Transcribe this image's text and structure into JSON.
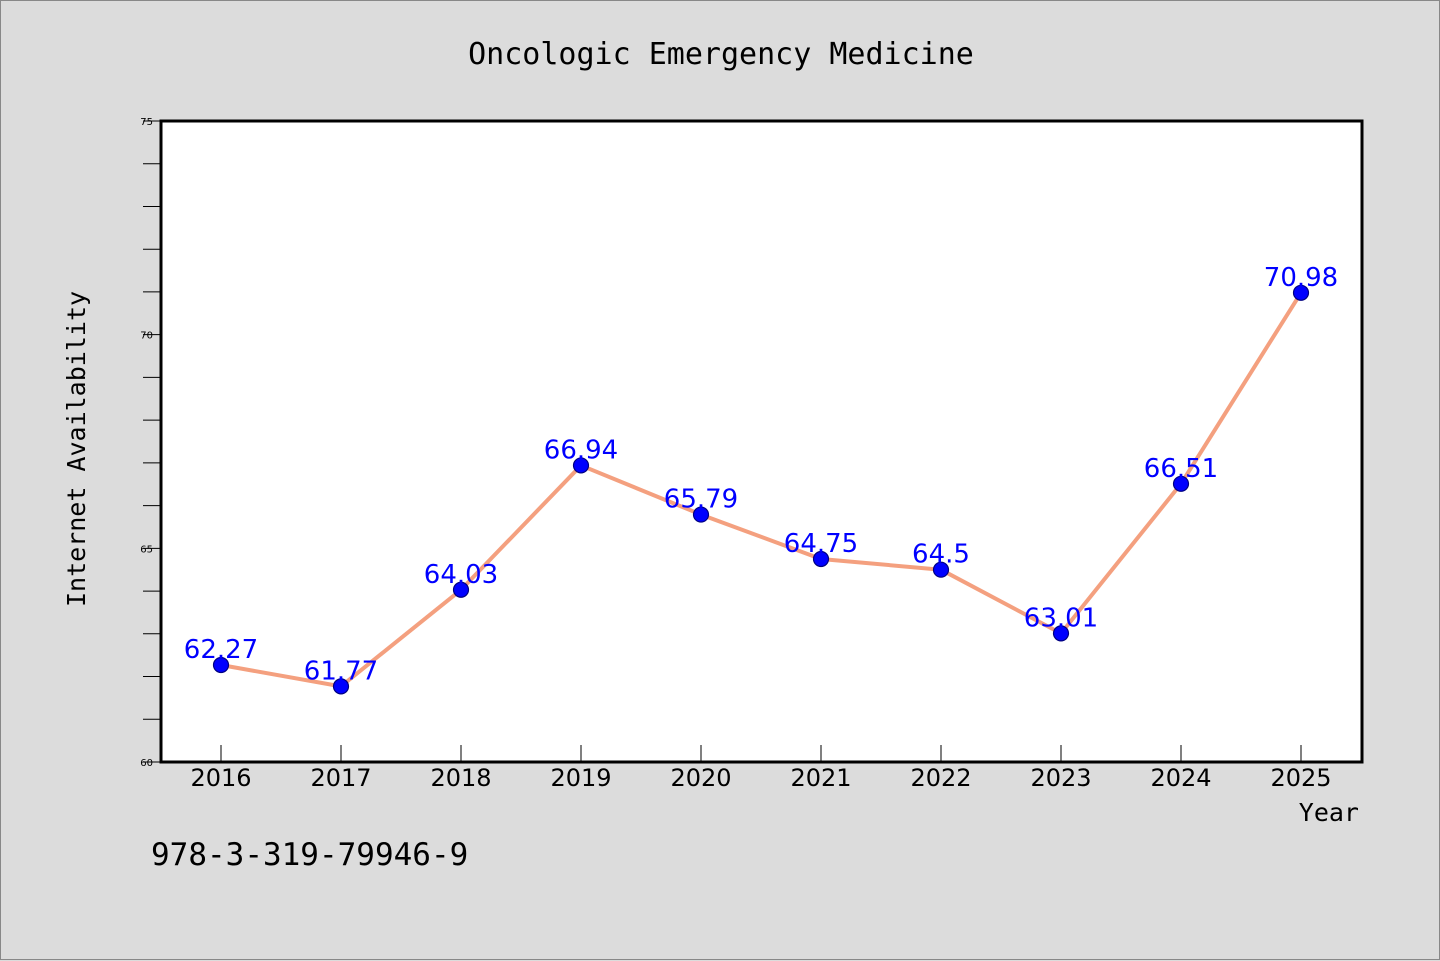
{
  "chart_data": {
    "type": "line",
    "title": "Oncologic Emergency Medicine",
    "xlabel": "Year",
    "ylabel": "Internet Availability",
    "categories": [
      "2016",
      "2017",
      "2018",
      "2019",
      "2020",
      "2021",
      "2022",
      "2023",
      "2024",
      "2025"
    ],
    "values": [
      62.27,
      61.77,
      64.03,
      66.94,
      65.79,
      64.75,
      64.5,
      63.01,
      66.51,
      70.98
    ],
    "data_labels": [
      "62.27",
      "61.77",
      "64.03",
      "66.94",
      "65.79",
      "64.75",
      "64.5",
      "63.01",
      "66.51",
      "70.98"
    ],
    "ylim": [
      60,
      75
    ],
    "yticks": [
      60,
      65,
      70,
      75
    ],
    "ytick_labels": [
      "60",
      "65",
      "70",
      "75"
    ],
    "y_minor_step": 1,
    "grid": false,
    "legend": "none",
    "colors": {
      "line": "#f4a07f",
      "marker": "#0000ff",
      "marker_edge": "#000080",
      "data_label": "#0000ff",
      "plot_bg": "#ffffff",
      "figure_bg": "#dcdcdc"
    }
  },
  "footer": {
    "isbn": "978-3-319-79946-9"
  }
}
